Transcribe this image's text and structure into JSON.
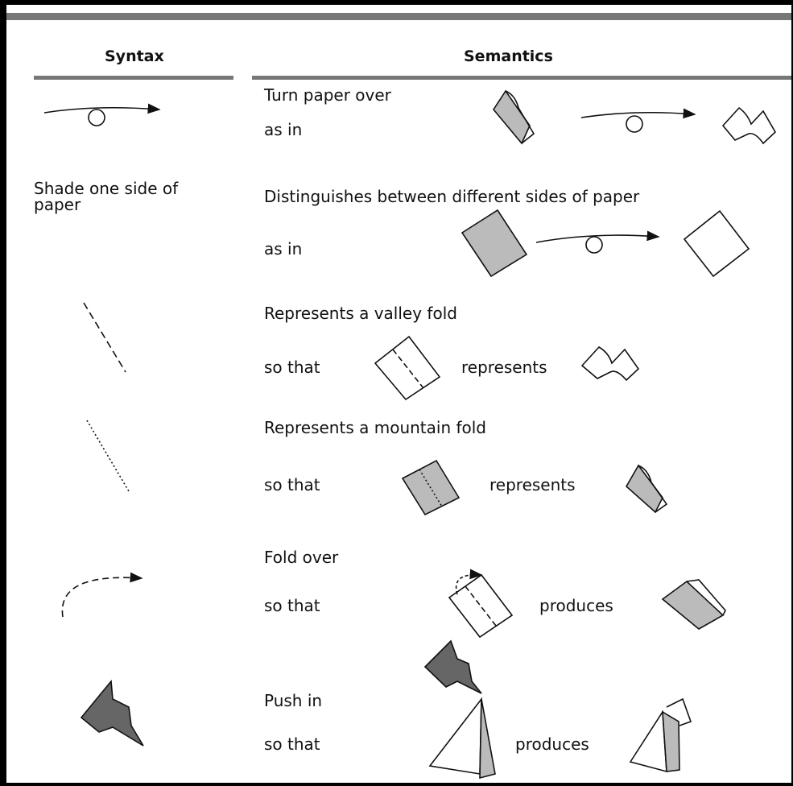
{
  "header": {
    "syntax": "Syntax",
    "semantics": "Semantics"
  },
  "rows": [
    {
      "description": "Turn paper over",
      "relation": "as in"
    },
    {
      "syntax": "Shade one side of paper",
      "description": "Distinguishes between different sides of paper",
      "relation": "as in"
    },
    {
      "description": "Represents a valley fold",
      "relation": "so that",
      "result": "represents"
    },
    {
      "description": "Represents a mountain fold",
      "relation": "so that",
      "result": "represents"
    },
    {
      "description": "Fold over",
      "relation": "so that",
      "result": "produces"
    },
    {
      "description": "Push in",
      "relation": "so that",
      "result": "produces"
    }
  ]
}
